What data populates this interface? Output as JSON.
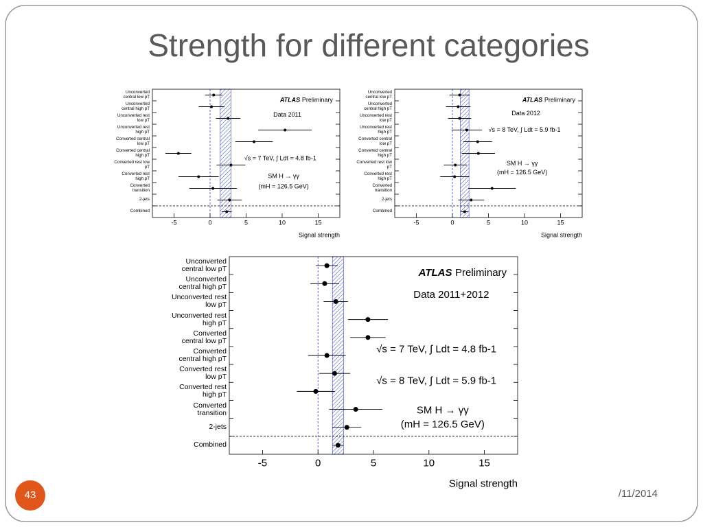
{
  "slide": {
    "title": "Strength for different categories",
    "page_number": "43",
    "date": "/11/2014"
  },
  "chart_data": [
    {
      "type": "errorbar",
      "categories": [
        "Unconverted central low pT",
        "Unconverted central high pT",
        "Unconverted rest low pT",
        "Unconverted rest high pT",
        "Converted central low pT",
        "Converted central high pT",
        "Converted rest low pT",
        "Converted rest high pT",
        "Converted transition",
        "2-jets",
        "Combined"
      ],
      "values": [
        0.5,
        0.2,
        2.5,
        10.4,
        6.1,
        -4.4,
        2.9,
        -1.6,
        0.4,
        2.7,
        2.3
      ],
      "errors": [
        1.2,
        1.8,
        1.7,
        3.7,
        2.6,
        1.8,
        2.0,
        2.8,
        3.3,
        1.7,
        0.7
      ],
      "band": [
        1.4,
        2.9
      ],
      "xlim": [
        -8,
        18
      ],
      "xticks": [
        -5,
        0,
        5,
        10,
        15
      ],
      "xlabel": "Signal strength",
      "experiment": "ATLAS",
      "status": "Preliminary",
      "dataset": "Data 2011",
      "energy": [
        "√s = 7 TeV, ∫ Ldt = 4.8 fb-1"
      ],
      "process": "SM H → γγ",
      "mass": "(mH = 126.5 GeV)"
    },
    {
      "type": "errorbar",
      "categories": [
        "Unconverted central low pT",
        "Unconverted central high pT",
        "Unconverted rest low pT",
        "Unconverted rest high pT",
        "Converted central low pT",
        "Converted central high pT",
        "Converted rest low pT",
        "Converted rest high pT",
        "Converted transition",
        "2-jets",
        "Combined"
      ],
      "values": [
        1.0,
        0.8,
        1.0,
        2.0,
        3.5,
        3.6,
        0.4,
        0.3,
        5.5,
        2.6,
        1.7
      ],
      "errors": [
        1.4,
        1.7,
        1.6,
        2.1,
        2.0,
        2.3,
        1.6,
        2.0,
        3.3,
        1.8,
        0.5
      ],
      "band": [
        1.1,
        2.3
      ],
      "xlim": [
        -8,
        18
      ],
      "xticks": [
        -5,
        0,
        5,
        10,
        15
      ],
      "xlabel": "Signal strength",
      "experiment": "ATLAS",
      "status": "Preliminary",
      "dataset": "Data 2012",
      "energy": [
        "√s = 8 TeV, ∫ Ldt = 5.9 fb-1"
      ],
      "process": "SM H → γγ",
      "mass": "(mH = 126.5 GeV)"
    },
    {
      "type": "errorbar",
      "categories": [
        "Unconverted central low pT",
        "Unconverted central high pT",
        "Unconverted rest low pT",
        "Unconverted rest high pT",
        "Converted central low pT",
        "Converted central high pT",
        "Converted rest low pT",
        "Converted rest high pT",
        "Converted transition",
        "2-jets",
        "Combined"
      ],
      "values": [
        0.8,
        0.6,
        1.6,
        4.5,
        4.5,
        0.8,
        1.5,
        -0.2,
        3.4,
        2.6,
        1.8
      ],
      "errors": [
        1.0,
        1.3,
        1.1,
        1.8,
        1.6,
        1.7,
        1.4,
        1.7,
        2.4,
        1.3,
        0.5
      ],
      "band": [
        1.3,
        2.3
      ],
      "xlim": [
        -8,
        18
      ],
      "xticks": [
        -5,
        0,
        5,
        10,
        15
      ],
      "xlabel": "Signal strength",
      "experiment": "ATLAS",
      "status": "Preliminary",
      "dataset": "Data 2011+2012",
      "energy": [
        "√s = 7 TeV, ∫ Ldt = 4.8 fb-1",
        "√s = 8 TeV, ∫ Ldt = 5.9 fb-1"
      ],
      "process": "SM H → γγ",
      "mass": "(mH = 126.5 GeV)"
    }
  ]
}
